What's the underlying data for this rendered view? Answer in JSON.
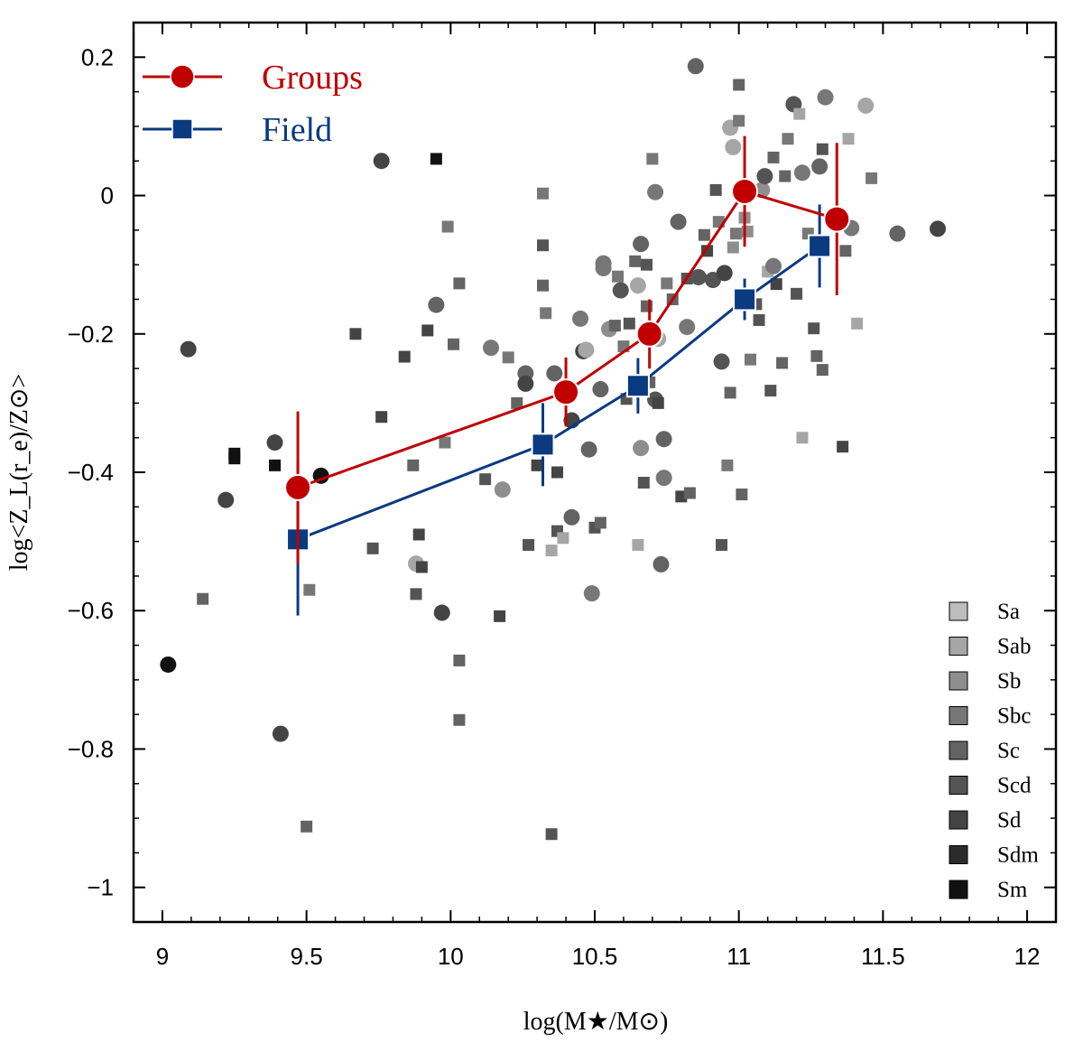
{
  "chart_data": {
    "type": "scatter",
    "xlabel": "log(M★/M⊙)",
    "ylabel": "log<Z_L(r_e)/Z⊙>",
    "xlim": [
      8.9,
      12.1
    ],
    "ylim": [
      -1.05,
      0.25
    ],
    "x_ticks": [
      "9",
      "9.5",
      "10",
      "10.5",
      "11",
      "11.5",
      "12"
    ],
    "y_ticks": [
      "0.2",
      "0",
      "−0.2",
      "−0.4",
      "−0.6",
      "−0.8",
      "−1"
    ],
    "colors": {
      "groups": "#c00000",
      "field": "#0a3a80"
    },
    "legend": {
      "position": "top-left",
      "groups_label": "Groups",
      "field_label": "Field"
    },
    "series": [
      {
        "name": "Groups",
        "marker": "circle",
        "points": [
          {
            "x": 9.47,
            "y": -0.422,
            "err": 0.11
          },
          {
            "x": 10.4,
            "y": -0.284,
            "err": 0.05
          },
          {
            "x": 10.69,
            "y": -0.2,
            "err": 0.05
          },
          {
            "x": 11.02,
            "y": 0.006,
            "err": 0.08
          },
          {
            "x": 11.34,
            "y": -0.034,
            "err": 0.11
          }
        ]
      },
      {
        "name": "Field",
        "marker": "square",
        "points": [
          {
            "x": 9.47,
            "y": -0.497,
            "err": 0.11
          },
          {
            "x": 10.32,
            "y": -0.36,
            "err": 0.06
          },
          {
            "x": 10.65,
            "y": -0.275,
            "err": 0.04
          },
          {
            "x": 11.02,
            "y": -0.15,
            "err": 0.03
          },
          {
            "x": 11.28,
            "y": -0.073,
            "err": 0.06
          }
        ]
      }
    ],
    "morph_legend": {
      "position": "bottom-right",
      "types": [
        {
          "label": "Sa",
          "color": "#bdbdbd"
        },
        {
          "label": "Sab",
          "color": "#a6a6a6"
        },
        {
          "label": "Sb",
          "color": "#8e8e8e"
        },
        {
          "label": "Sbc",
          "color": "#777777"
        },
        {
          "label": "Sc",
          "color": "#636363"
        },
        {
          "label": "Scd",
          "color": "#545454"
        },
        {
          "label": "Sd",
          "color": "#444444"
        },
        {
          "label": "Sdm",
          "color": "#2b2b2b"
        },
        {
          "label": "Sm",
          "color": "#111111"
        }
      ]
    },
    "galaxies": [
      {
        "x": 9.02,
        "y": -0.678,
        "s": "c",
        "t": 8
      },
      {
        "x": 9.09,
        "y": -0.222,
        "s": "c",
        "t": 6
      },
      {
        "x": 9.14,
        "y": -0.583,
        "s": "s",
        "t": 4
      },
      {
        "x": 9.22,
        "y": -0.44,
        "s": "c",
        "t": 6
      },
      {
        "x": 9.25,
        "y": -0.373,
        "s": "s",
        "t": 8
      },
      {
        "x": 9.25,
        "y": -0.38,
        "s": "s",
        "t": 8
      },
      {
        "x": 9.39,
        "y": -0.39,
        "s": "s",
        "t": 8
      },
      {
        "x": 9.39,
        "y": -0.357,
        "s": "c",
        "t": 6
      },
      {
        "x": 9.41,
        "y": -0.778,
        "s": "c",
        "t": 6
      },
      {
        "x": 9.5,
        "y": -0.912,
        "s": "s",
        "t": 4
      },
      {
        "x": 9.51,
        "y": -0.57,
        "s": "s",
        "t": 3
      },
      {
        "x": 9.55,
        "y": -0.405,
        "s": "c",
        "t": 8
      },
      {
        "x": 9.67,
        "y": -0.2,
        "s": "s",
        "t": 6
      },
      {
        "x": 9.73,
        "y": -0.51,
        "s": "s",
        "t": 5
      },
      {
        "x": 9.76,
        "y": 0.05,
        "s": "c",
        "t": 6
      },
      {
        "x": 9.76,
        "y": -0.32,
        "s": "s",
        "t": 6
      },
      {
        "x": 9.84,
        "y": -0.233,
        "s": "s",
        "t": 6
      },
      {
        "x": 9.87,
        "y": -0.39,
        "s": "s",
        "t": 4
      },
      {
        "x": 9.88,
        "y": -0.576,
        "s": "s",
        "t": 5
      },
      {
        "x": 9.88,
        "y": -0.532,
        "s": "c",
        "t": 1
      },
      {
        "x": 9.89,
        "y": -0.49,
        "s": "s",
        "t": 6
      },
      {
        "x": 9.9,
        "y": -0.537,
        "s": "s",
        "t": 6
      },
      {
        "x": 9.92,
        "y": -0.195,
        "s": "s",
        "t": 6
      },
      {
        "x": 9.95,
        "y": 0.053,
        "s": "s",
        "t": 8
      },
      {
        "x": 9.95,
        "y": -0.158,
        "s": "c",
        "t": 4
      },
      {
        "x": 9.97,
        "y": -0.603,
        "s": "c",
        "t": 6
      },
      {
        "x": 9.98,
        "y": -0.357,
        "s": "s",
        "t": 3
      },
      {
        "x": 9.99,
        "y": -0.045,
        "s": "s",
        "t": 3
      },
      {
        "x": 10.01,
        "y": -0.215,
        "s": "s",
        "t": 4
      },
      {
        "x": 10.03,
        "y": -0.127,
        "s": "s",
        "t": 4
      },
      {
        "x": 10.03,
        "y": -0.672,
        "s": "s",
        "t": 4
      },
      {
        "x": 10.03,
        "y": -0.758,
        "s": "s",
        "t": 4
      },
      {
        "x": 10.12,
        "y": -0.41,
        "s": "s",
        "t": 5
      },
      {
        "x": 10.14,
        "y": -0.22,
        "s": "c",
        "t": 3
      },
      {
        "x": 10.17,
        "y": -0.608,
        "s": "s",
        "t": 6
      },
      {
        "x": 10.18,
        "y": -0.425,
        "s": "c",
        "t": 2
      },
      {
        "x": 10.2,
        "y": -0.234,
        "s": "s",
        "t": 3
      },
      {
        "x": 10.23,
        "y": -0.3,
        "s": "s",
        "t": 4
      },
      {
        "x": 10.26,
        "y": -0.257,
        "s": "c",
        "t": 4
      },
      {
        "x": 10.26,
        "y": -0.272,
        "s": "c",
        "t": 6
      },
      {
        "x": 10.27,
        "y": -0.505,
        "s": "s",
        "t": 5
      },
      {
        "x": 10.3,
        "y": -0.39,
        "s": "s",
        "t": 6
      },
      {
        "x": 10.32,
        "y": 0.003,
        "s": "s",
        "t": 3
      },
      {
        "x": 10.32,
        "y": -0.072,
        "s": "s",
        "t": 5
      },
      {
        "x": 10.32,
        "y": -0.13,
        "s": "s",
        "t": 4
      },
      {
        "x": 10.33,
        "y": -0.17,
        "s": "s",
        "t": 3
      },
      {
        "x": 10.35,
        "y": -0.923,
        "s": "s",
        "t": 5
      },
      {
        "x": 10.35,
        "y": -0.513,
        "s": "s",
        "t": 1
      },
      {
        "x": 10.36,
        "y": -0.257,
        "s": "c",
        "t": 4
      },
      {
        "x": 10.37,
        "y": -0.4,
        "s": "s",
        "t": 6
      },
      {
        "x": 10.37,
        "y": -0.485,
        "s": "s",
        "t": 5
      },
      {
        "x": 10.39,
        "y": -0.495,
        "s": "s",
        "t": 1
      },
      {
        "x": 10.42,
        "y": -0.465,
        "s": "c",
        "t": 4
      },
      {
        "x": 10.42,
        "y": -0.325,
        "s": "c",
        "t": 6
      },
      {
        "x": 10.45,
        "y": -0.178,
        "s": "c",
        "t": 3
      },
      {
        "x": 10.46,
        "y": -0.225,
        "s": "c",
        "t": 6
      },
      {
        "x": 10.47,
        "y": -0.223,
        "s": "c",
        "t": 1
      },
      {
        "x": 10.48,
        "y": -0.367,
        "s": "c",
        "t": 4
      },
      {
        "x": 10.49,
        "y": -0.575,
        "s": "c",
        "t": 3
      },
      {
        "x": 10.5,
        "y": -0.48,
        "s": "s",
        "t": 5
      },
      {
        "x": 10.52,
        "y": -0.473,
        "s": "s",
        "t": 4
      },
      {
        "x": 10.52,
        "y": -0.28,
        "s": "c",
        "t": 4
      },
      {
        "x": 10.53,
        "y": -0.098,
        "s": "c",
        "t": 3
      },
      {
        "x": 10.53,
        "y": -0.105,
        "s": "c",
        "t": 3
      },
      {
        "x": 10.55,
        "y": -0.193,
        "s": "c",
        "t": 2
      },
      {
        "x": 10.57,
        "y": -0.188,
        "s": "s",
        "t": 4
      },
      {
        "x": 10.58,
        "y": -0.117,
        "s": "s",
        "t": 3
      },
      {
        "x": 10.59,
        "y": -0.137,
        "s": "c",
        "t": 5
      },
      {
        "x": 10.6,
        "y": -0.218,
        "s": "s",
        "t": 3
      },
      {
        "x": 10.61,
        "y": -0.294,
        "s": "s",
        "t": 5
      },
      {
        "x": 10.62,
        "y": -0.185,
        "s": "s",
        "t": 5
      },
      {
        "x": 10.64,
        "y": -0.095,
        "s": "s",
        "t": 4
      },
      {
        "x": 10.65,
        "y": -0.505,
        "s": "s",
        "t": 1
      },
      {
        "x": 10.65,
        "y": -0.13,
        "s": "c",
        "t": 1
      },
      {
        "x": 10.66,
        "y": -0.07,
        "s": "c",
        "t": 4
      },
      {
        "x": 10.66,
        "y": -0.365,
        "s": "c",
        "t": 2
      },
      {
        "x": 10.67,
        "y": -0.415,
        "s": "s",
        "t": 5
      },
      {
        "x": 10.68,
        "y": -0.1,
        "s": "s",
        "t": 5
      },
      {
        "x": 10.68,
        "y": -0.16,
        "s": "s",
        "t": 4
      },
      {
        "x": 10.69,
        "y": -0.27,
        "s": "s",
        "t": 4
      },
      {
        "x": 10.7,
        "y": 0.053,
        "s": "s",
        "t": 3
      },
      {
        "x": 10.71,
        "y": -0.295,
        "s": "c",
        "t": 5
      },
      {
        "x": 10.71,
        "y": 0.005,
        "s": "c",
        "t": 3
      },
      {
        "x": 10.72,
        "y": -0.3,
        "s": "s",
        "t": 6
      },
      {
        "x": 10.72,
        "y": -0.207,
        "s": "c",
        "t": 1
      },
      {
        "x": 10.73,
        "y": -0.533,
        "s": "c",
        "t": 4
      },
      {
        "x": 10.74,
        "y": -0.352,
        "s": "c",
        "t": 4
      },
      {
        "x": 10.74,
        "y": -0.408,
        "s": "c",
        "t": 3
      },
      {
        "x": 10.75,
        "y": -0.127,
        "s": "s",
        "t": 3
      },
      {
        "x": 10.77,
        "y": -0.15,
        "s": "s",
        "t": 4
      },
      {
        "x": 10.79,
        "y": -0.038,
        "s": "c",
        "t": 4
      },
      {
        "x": 10.8,
        "y": -0.435,
        "s": "s",
        "t": 6
      },
      {
        "x": 10.82,
        "y": -0.12,
        "s": "s",
        "t": 5
      },
      {
        "x": 10.82,
        "y": -0.19,
        "s": "c",
        "t": 3
      },
      {
        "x": 10.83,
        "y": -0.43,
        "s": "s",
        "t": 4
      },
      {
        "x": 10.85,
        "y": 0.187,
        "s": "c",
        "t": 4
      },
      {
        "x": 10.86,
        "y": -0.118,
        "s": "c",
        "t": 5
      },
      {
        "x": 10.88,
        "y": -0.057,
        "s": "s",
        "t": 4
      },
      {
        "x": 10.89,
        "y": -0.08,
        "s": "s",
        "t": 6
      },
      {
        "x": 10.91,
        "y": -0.122,
        "s": "c",
        "t": 5
      },
      {
        "x": 10.92,
        "y": 0.008,
        "s": "s",
        "t": 5
      },
      {
        "x": 10.93,
        "y": -0.038,
        "s": "s",
        "t": 3
      },
      {
        "x": 10.94,
        "y": -0.505,
        "s": "s",
        "t": 5
      },
      {
        "x": 10.94,
        "y": -0.24,
        "s": "c",
        "t": 5
      },
      {
        "x": 10.95,
        "y": -0.112,
        "s": "c",
        "t": 6
      },
      {
        "x": 10.96,
        "y": -0.39,
        "s": "s",
        "t": 3
      },
      {
        "x": 10.97,
        "y": 0.098,
        "s": "c",
        "t": 1
      },
      {
        "x": 10.97,
        "y": -0.285,
        "s": "s",
        "t": 4
      },
      {
        "x": 10.98,
        "y": 0.07,
        "s": "c",
        "t": 1
      },
      {
        "x": 10.98,
        "y": -0.075,
        "s": "s",
        "t": 2
      },
      {
        "x": 10.99,
        "y": -0.055,
        "s": "s",
        "t": 3
      },
      {
        "x": 11.0,
        "y": 0.16,
        "s": "s",
        "t": 4
      },
      {
        "x": 11.0,
        "y": 0.108,
        "s": "s",
        "t": 3
      },
      {
        "x": 11.01,
        "y": -0.432,
        "s": "s",
        "t": 4
      },
      {
        "x": 11.02,
        "y": -0.032,
        "s": "s",
        "t": 2
      },
      {
        "x": 11.03,
        "y": -0.052,
        "s": "s",
        "t": 2
      },
      {
        "x": 11.04,
        "y": -0.237,
        "s": "s",
        "t": 3
      },
      {
        "x": 11.06,
        "y": -0.157,
        "s": "s",
        "t": 5
      },
      {
        "x": 11.07,
        "y": -0.18,
        "s": "s",
        "t": 5
      },
      {
        "x": 11.08,
        "y": 0.008,
        "s": "c",
        "t": 2
      },
      {
        "x": 11.09,
        "y": 0.028,
        "s": "c",
        "t": 5
      },
      {
        "x": 11.1,
        "y": -0.11,
        "s": "s",
        "t": 1
      },
      {
        "x": 11.11,
        "y": -0.282,
        "s": "s",
        "t": 5
      },
      {
        "x": 11.12,
        "y": -0.102,
        "s": "c",
        "t": 3
      },
      {
        "x": 11.12,
        "y": 0.055,
        "s": "s",
        "t": 4
      },
      {
        "x": 11.13,
        "y": -0.128,
        "s": "s",
        "t": 6
      },
      {
        "x": 11.15,
        "y": -0.242,
        "s": "s",
        "t": 4
      },
      {
        "x": 11.16,
        "y": 0.028,
        "s": "s",
        "t": 4
      },
      {
        "x": 11.17,
        "y": 0.082,
        "s": "s",
        "t": 3
      },
      {
        "x": 11.19,
        "y": 0.132,
        "s": "c",
        "t": 5
      },
      {
        "x": 11.2,
        "y": -0.142,
        "s": "s",
        "t": 5
      },
      {
        "x": 11.21,
        "y": 0.118,
        "s": "s",
        "t": 1
      },
      {
        "x": 11.22,
        "y": 0.033,
        "s": "c",
        "t": 3
      },
      {
        "x": 11.24,
        "y": -0.055,
        "s": "s",
        "t": 3
      },
      {
        "x": 11.26,
        "y": -0.192,
        "s": "s",
        "t": 5
      },
      {
        "x": 11.27,
        "y": -0.232,
        "s": "s",
        "t": 4
      },
      {
        "x": 11.28,
        "y": 0.042,
        "s": "c",
        "t": 4
      },
      {
        "x": 11.29,
        "y": 0.067,
        "s": "s",
        "t": 5
      },
      {
        "x": 11.29,
        "y": -0.252,
        "s": "s",
        "t": 4
      },
      {
        "x": 11.3,
        "y": 0.142,
        "s": "c",
        "t": 3
      },
      {
        "x": 11.22,
        "y": -0.35,
        "s": "s",
        "t": 1
      },
      {
        "x": 11.36,
        "y": -0.363,
        "s": "s",
        "t": 6
      },
      {
        "x": 11.37,
        "y": -0.08,
        "s": "s",
        "t": 4
      },
      {
        "x": 11.38,
        "y": 0.082,
        "s": "s",
        "t": 1
      },
      {
        "x": 11.39,
        "y": -0.047,
        "s": "c",
        "t": 3
      },
      {
        "x": 11.41,
        "y": -0.185,
        "s": "s",
        "t": 1
      },
      {
        "x": 11.44,
        "y": 0.13,
        "s": "c",
        "t": 1
      },
      {
        "x": 11.46,
        "y": 0.025,
        "s": "s",
        "t": 3
      },
      {
        "x": 11.55,
        "y": -0.055,
        "s": "c",
        "t": 4
      },
      {
        "x": 11.69,
        "y": -0.048,
        "s": "c",
        "t": 6
      }
    ]
  }
}
